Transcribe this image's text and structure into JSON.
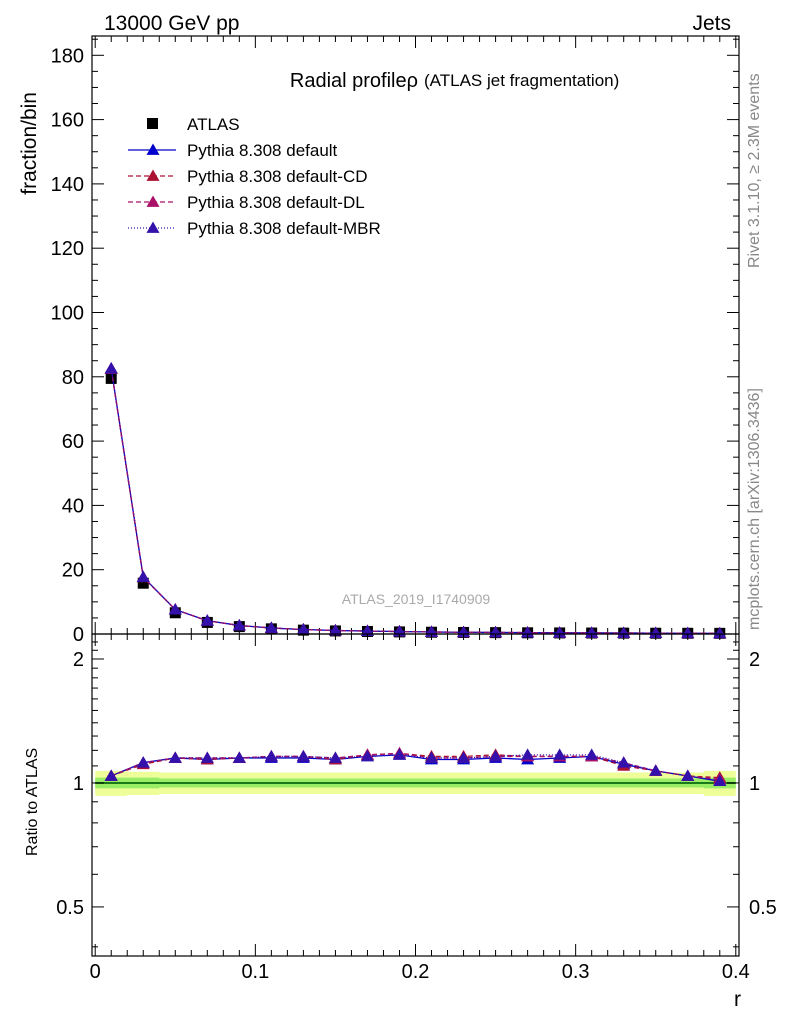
{
  "header": {
    "energy_label": "13000 GeV pp",
    "category_label": "Jets"
  },
  "side": {
    "rivet_label": "Rivet 3.1.10, ≥ 2.3M events",
    "source_label": "mcplots.cern.ch [arXiv:1306.3436]"
  },
  "colors": {
    "data": "#000000",
    "default": "#0000cc",
    "default_cd": "#aa1133",
    "default_dl": "#aa1166",
    "default_mbr": "#3311aa",
    "band_green": "#99ee66",
    "band_yellow": "#eeff99",
    "ref_line": "#1a7a1a"
  },
  "chart_data": [
    {
      "type": "line",
      "title": "Radial profileρ (ATLAS jet fragmentation)",
      "title_main": "Radial profileρ",
      "title_sub": "(ATLAS jet fragmentation)",
      "ylabel": "fraction/bin",
      "xlabel": "",
      "watermark": "ATLAS_2019_I1740909",
      "ylim": [
        0,
        186
      ],
      "xlim": [
        -0.002,
        0.402
      ],
      "yticks": [
        0,
        20,
        40,
        60,
        80,
        100,
        120,
        140,
        160,
        180
      ],
      "grid": false,
      "legend_position": "top-left",
      "x": [
        0.01,
        0.03,
        0.05,
        0.07,
        0.09,
        0.11,
        0.13,
        0.15,
        0.17,
        0.19,
        0.21,
        0.23,
        0.25,
        0.27,
        0.29,
        0.31,
        0.33,
        0.35,
        0.37,
        0.39
      ],
      "series": [
        {
          "name": "ATLAS",
          "marker": "square",
          "values": [
            79.5,
            15.8,
            6.6,
            3.6,
            2.3,
            1.6,
            1.2,
            0.95,
            0.78,
            0.65,
            0.55,
            0.48,
            0.42,
            0.37,
            0.33,
            0.3,
            0.27,
            0.24,
            0.22,
            0.2
          ]
        },
        {
          "name": "Pythia 8.308 default",
          "marker": "triangle",
          "dash": "none",
          "values": [
            82.6,
            17.7,
            7.6,
            4.14,
            2.65,
            1.85,
            1.39,
            1.09,
            0.91,
            0.76,
            0.63,
            0.55,
            0.49,
            0.42,
            0.38,
            0.35,
            0.3,
            0.26,
            0.23,
            0.2
          ]
        },
        {
          "name": "Pythia 8.308 default-CD",
          "marker": "triangle",
          "dash": "5,3",
          "values": [
            82.4,
            17.6,
            7.6,
            4.12,
            2.65,
            1.86,
            1.39,
            1.09,
            0.91,
            0.76,
            0.63,
            0.55,
            0.49,
            0.43,
            0.38,
            0.35,
            0.3,
            0.26,
            0.23,
            0.21
          ]
        },
        {
          "name": "Pythia 8.308 default-DL",
          "marker": "triangle",
          "dash": "5,3",
          "values": [
            82.5,
            17.7,
            7.6,
            4.13,
            2.65,
            1.86,
            1.39,
            1.09,
            0.91,
            0.76,
            0.63,
            0.55,
            0.49,
            0.43,
            0.38,
            0.35,
            0.3,
            0.26,
            0.23,
            0.2
          ]
        },
        {
          "name": "Pythia 8.308 default-MBR",
          "marker": "triangle",
          "dash": "1,2",
          "values": [
            82.5,
            17.7,
            7.6,
            4.13,
            2.65,
            1.86,
            1.39,
            1.09,
            0.91,
            0.76,
            0.63,
            0.55,
            0.49,
            0.43,
            0.38,
            0.35,
            0.3,
            0.26,
            0.23,
            0.2
          ]
        }
      ]
    },
    {
      "type": "line",
      "title": "",
      "ylabel": "Ratio to ATLAS",
      "xlabel": "r",
      "ylim": [
        0.38,
        2.3
      ],
      "yticks": [
        0.5,
        1,
        2
      ],
      "ytick_labels": [
        "0.5",
        "1",
        "2"
      ],
      "xlim": [
        -0.002,
        0.402
      ],
      "xticks": [
        0,
        0.1,
        0.2,
        0.3,
        0.4
      ],
      "xtick_labels": [
        "0",
        "0.1",
        "0.2",
        "0.3",
        "0.4"
      ],
      "grid": false,
      "x": [
        0.01,
        0.03,
        0.05,
        0.07,
        0.09,
        0.11,
        0.13,
        0.15,
        0.17,
        0.19,
        0.21,
        0.23,
        0.25,
        0.27,
        0.29,
        0.31,
        0.33,
        0.35,
        0.37,
        0.39
      ],
      "reference_band": {
        "inner_halfwidth": [
          0.03,
          0.03,
          0.025,
          0.025,
          0.025,
          0.025,
          0.025,
          0.025,
          0.025,
          0.025,
          0.025,
          0.025,
          0.025,
          0.025,
          0.025,
          0.025,
          0.025,
          0.025,
          0.025,
          0.03
        ],
        "outer_halfwidth": [
          0.07,
          0.065,
          0.06,
          0.06,
          0.06,
          0.06,
          0.06,
          0.06,
          0.06,
          0.06,
          0.06,
          0.06,
          0.06,
          0.06,
          0.06,
          0.06,
          0.06,
          0.06,
          0.06,
          0.07
        ]
      },
      "series": [
        {
          "name": "Pythia 8.308 default",
          "marker": "triangle",
          "dash": "none",
          "values": [
            1.04,
            1.12,
            1.15,
            1.14,
            1.15,
            1.15,
            1.15,
            1.14,
            1.16,
            1.17,
            1.14,
            1.14,
            1.15,
            1.14,
            1.15,
            1.16,
            1.11,
            1.07,
            1.04,
            1.01
          ]
        },
        {
          "name": "Pythia 8.308 default-CD",
          "marker": "triangle",
          "dash": "5,3",
          "values": [
            1.04,
            1.11,
            1.15,
            1.14,
            1.15,
            1.16,
            1.16,
            1.14,
            1.17,
            1.18,
            1.16,
            1.16,
            1.17,
            1.16,
            1.16,
            1.16,
            1.1,
            1.07,
            1.04,
            1.03
          ]
        },
        {
          "name": "Pythia 8.308 default-DL",
          "marker": "triangle",
          "dash": "5,3",
          "values": [
            1.04,
            1.12,
            1.15,
            1.15,
            1.15,
            1.16,
            1.16,
            1.15,
            1.17,
            1.18,
            1.15,
            1.15,
            1.16,
            1.16,
            1.16,
            1.16,
            1.12,
            1.07,
            1.04,
            1.02
          ]
        },
        {
          "name": "Pythia 8.308 default-MBR",
          "marker": "triangle",
          "dash": "1,2",
          "values": [
            1.04,
            1.12,
            1.15,
            1.15,
            1.15,
            1.16,
            1.16,
            1.15,
            1.16,
            1.17,
            1.15,
            1.15,
            1.16,
            1.17,
            1.17,
            1.17,
            1.12,
            1.07,
            1.04,
            1.01
          ]
        }
      ]
    }
  ]
}
